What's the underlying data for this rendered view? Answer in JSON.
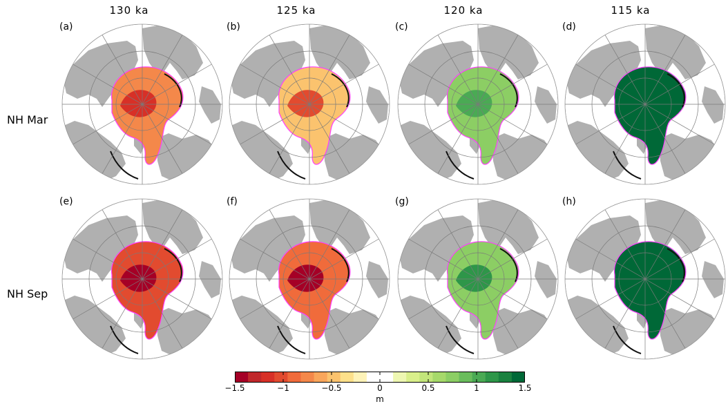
{
  "columns": [
    "130  ka",
    "125  ka",
    "120  ka",
    "115  ka"
  ],
  "rows": [
    "NH Mar",
    "NH Sep"
  ],
  "panels": [
    {
      "letter": "(a)",
      "anomaly": -0.7
    },
    {
      "letter": "(b)",
      "anomaly": -0.5
    },
    {
      "letter": "(c)",
      "anomaly": 0.7
    },
    {
      "letter": "(d)",
      "anomaly": 1.4
    },
    {
      "letter": "(e)",
      "anomaly": -1.0
    },
    {
      "letter": "(f)",
      "anomaly": -0.9
    },
    {
      "letter": "(g)",
      "anomaly": 0.8
    },
    {
      "letter": "(h)",
      "anomaly": 1.5
    }
  ],
  "colorbar": {
    "min": -1.5,
    "max": 1.5,
    "tick_values": [
      -1.5,
      -1,
      -0.5,
      0,
      0.5,
      1,
      1.5
    ],
    "tick_labels": [
      "−1.5",
      "−1",
      "−0.5",
      "0",
      "0.5",
      "1",
      "1.5"
    ],
    "unit": "m",
    "colors": [
      "#a50026",
      "#c0282b",
      "#d73027",
      "#e24b2f",
      "#f06b3b",
      "#f4884a",
      "#f9a65b",
      "#fbc36e",
      "#fde08a",
      "#fef3b8",
      "#ffffff",
      "#ffffff",
      "#eef7b2",
      "#d9ef8b",
      "#c2e57a",
      "#a6d96a",
      "#8cce64",
      "#6abd5c",
      "#4aaa54",
      "#2e9649",
      "#1a813f",
      "#006837"
    ]
  },
  "map_colors": {
    "land": "#b0b0b0",
    "ocean": "#ffffff",
    "grid": "#7a7a7a",
    "edge_black": "#111111",
    "edge_magenta": "#ff3cff"
  }
}
